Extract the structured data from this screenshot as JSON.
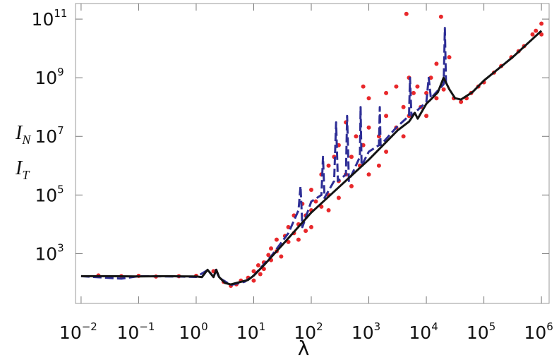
{
  "chart_data": {
    "type": "scatter",
    "xlabel": "λ",
    "ylabel": [
      {
        "text": "I",
        "sub": "N"
      },
      {
        "text": "I",
        "sub": "T"
      }
    ],
    "log_x": true,
    "log_y": true,
    "xlim": [
      0.008,
      1360000
    ],
    "ylim": [
      20,
      340000000000
    ],
    "xticks": [
      {
        "value": 0.01,
        "label": "10",
        "exp": "−2"
      },
      {
        "value": 0.1,
        "label": "10",
        "exp": "−1"
      },
      {
        "value": 1,
        "label": "10",
        "exp": "0"
      },
      {
        "value": 10,
        "label": "10",
        "exp": "1"
      },
      {
        "value": 100,
        "label": "10",
        "exp": "2"
      },
      {
        "value": 1000,
        "label": "10",
        "exp": "3"
      },
      {
        "value": 10000,
        "label": "10",
        "exp": "4"
      },
      {
        "value": 100000,
        "label": "10",
        "exp": "5"
      },
      {
        "value": 1000000,
        "label": "10",
        "exp": "6"
      }
    ],
    "yticks": [
      {
        "value": 1000,
        "label": "10",
        "exp": "3"
      },
      {
        "value": 100000,
        "label": "10",
        "exp": "5"
      },
      {
        "value": 10000000,
        "label": "10",
        "exp": "7"
      },
      {
        "value": 1000000000,
        "label": "10",
        "exp": "9"
      },
      {
        "value": 100000000000,
        "label": "10",
        "exp": "11"
      }
    ],
    "series": [
      {
        "type": "scatter",
        "color": "#e8282b",
        "x": [
          0.02,
          0.05,
          0.1,
          0.2,
          0.5,
          1,
          2,
          3,
          4,
          5,
          6,
          8,
          10,
          10,
          12,
          13,
          15,
          15,
          18,
          20,
          20,
          25,
          25,
          30,
          30,
          35,
          40,
          40,
          50,
          50,
          60,
          60,
          70,
          80,
          80,
          100,
          100,
          100,
          120,
          150,
          150,
          200,
          200,
          200,
          250,
          300,
          300,
          300,
          400,
          400,
          500,
          500,
          600,
          700,
          800,
          800,
          1000,
          1000,
          1000,
          1500,
          1500,
          2000,
          2000,
          2000,
          3000,
          3000,
          4000,
          4000,
          4500,
          5000,
          5000,
          6000,
          7000,
          8000,
          10000,
          10000,
          12000,
          15000,
          15000,
          18000,
          20000,
          25000,
          30000,
          40000,
          50000,
          60000,
          80000,
          100000,
          150000,
          200000,
          300000,
          400000,
          500000,
          700000,
          800000,
          1000000,
          1000000
        ],
        "y": [
          180,
          170,
          175,
          165,
          170,
          175,
          250,
          110,
          80,
          90,
          120,
          150,
          250,
          120,
          400,
          200,
          500,
          300,
          900,
          600,
          1500,
          1200,
          3000,
          2000,
          800,
          4000,
          2500,
          8000,
          5000,
          20000,
          10000,
          3000,
          50000,
          20000,
          6000,
          30000,
          150000,
          8000,
          60000,
          500000,
          40000,
          100000,
          1000000,
          30000,
          2000000,
          300000,
          5000000,
          80000,
          500000,
          30000000,
          2000000,
          200000,
          10000000,
          1000000,
          5000000,
          500000000,
          20000000,
          500000,
          200000000,
          10000000,
          1000000,
          50000000,
          3000000,
          300000000,
          20000000,
          500000000,
          100000000,
          10000000,
          150000000000,
          1000000000,
          50000000,
          300000000,
          500000000,
          100000000,
          300000000,
          50000000,
          1000000000,
          200000000,
          3000000000,
          120000000000,
          400000000,
          5000000000,
          200000000,
          150000000,
          200000000,
          300000000,
          500000000,
          700000000,
          1500000000,
          2500000000,
          5000000000,
          8000000000,
          12000000000,
          30000000000,
          40000000000,
          70000000000,
          30000000000
        ]
      },
      {
        "type": "line",
        "color": "#2e2e96",
        "dash": true,
        "x": [
          0.01,
          0.05,
          0.1,
          0.5,
          1,
          1.6,
          2,
          2.2,
          2.5,
          4,
          7,
          10,
          20,
          40,
          60,
          65,
          70,
          100,
          150,
          160,
          170,
          250,
          270,
          290,
          400,
          420,
          450,
          700,
          720,
          750,
          1000,
          1500,
          1550,
          1600,
          3000,
          5000,
          5200,
          5500,
          10000,
          11000,
          12000,
          20000,
          21000,
          22000
        ],
        "y": [
          170,
          140,
          170,
          165,
          160,
          280,
          160,
          280,
          150,
          85,
          110,
          180,
          800,
          5000,
          30000,
          200000,
          8000,
          60000,
          100000,
          2000000,
          80000,
          300000,
          30000000,
          300000,
          500000,
          50000000,
          300000,
          2000000,
          100000000,
          1000000,
          3000000,
          5000000,
          100000000,
          5000000,
          20000000,
          50000000,
          1000000000,
          50000000,
          150000000,
          1000000000,
          200000000,
          600000000,
          50000000000,
          500000000
        ]
      },
      {
        "type": "line",
        "color": "#141414",
        "x": [
          0.01,
          0.0316,
          0.1,
          0.316,
          1,
          1.26,
          1.58,
          2,
          2.24,
          2.51,
          3.16,
          3.98,
          5.01,
          6.31,
          7.94,
          10,
          15.8,
          31.6,
          100,
          316,
          1000,
          3162,
          5012,
          6310,
          7079,
          10000,
          12590,
          15850,
          19950,
          25120,
          31620,
          39810,
          63100,
          100000,
          316200,
          1000000
        ],
        "y": [
          170,
          170,
          166,
          170,
          166,
          158,
          282,
          158,
          282,
          158,
          100,
          89,
          100,
          112,
          126,
          178,
          447,
          2000,
          25000,
          200000,
          1600000,
          16000000,
          32000000,
          63000000,
          40000000,
          130000000,
          200000000,
          320000000,
          1000000000,
          400000000,
          200000000,
          180000000,
          320000000,
          800000000,
          5000000000,
          40000000000
        ]
      }
    ]
  }
}
